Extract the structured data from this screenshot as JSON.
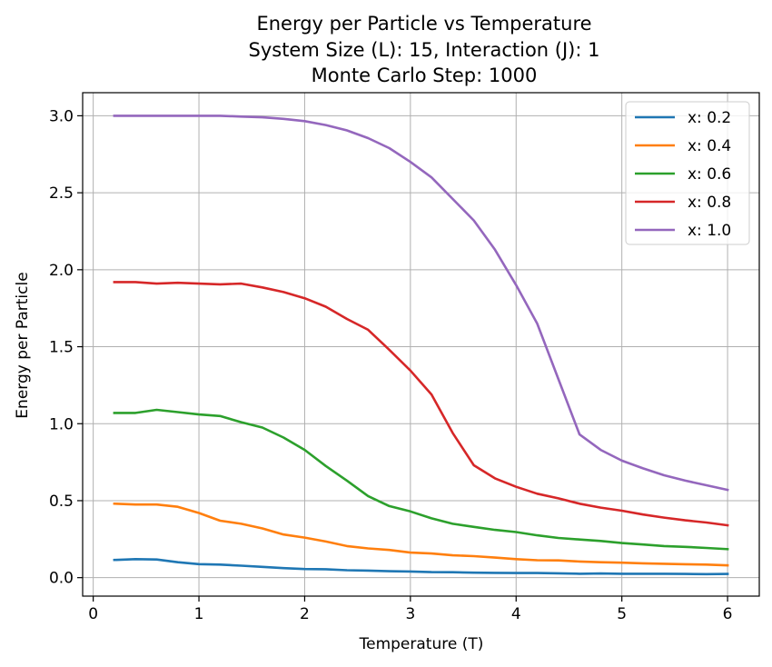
{
  "chart_data": {
    "type": "line",
    "title": [
      "Energy per Particle vs Temperature",
      "System Size (L): 15, Interaction (J): 1",
      "Monte Carlo Step: 1000"
    ],
    "xlabel": "Temperature (T)",
    "ylabel": "Energy per Particle",
    "xlim": [
      -0.1,
      6.3
    ],
    "ylim": [
      -0.12,
      3.15
    ],
    "xticks": [
      0,
      1,
      2,
      3,
      4,
      5,
      6
    ],
    "xtick_labels": [
      "0",
      "1",
      "2",
      "3",
      "4",
      "5",
      "6"
    ],
    "yticks": [
      0.0,
      0.5,
      1.0,
      1.5,
      2.0,
      2.5,
      3.0
    ],
    "ytick_labels": [
      "0.0",
      "0.5",
      "1.0",
      "1.5",
      "2.0",
      "2.5",
      "3.0"
    ],
    "grid": true,
    "legend_position": "top-right",
    "x": [
      0.2,
      0.4,
      0.6,
      0.8,
      1.0,
      1.2,
      1.4,
      1.6,
      1.8,
      2.0,
      2.2,
      2.4,
      2.6,
      2.8,
      3.0,
      3.2,
      3.4,
      3.6,
      3.8,
      4.0,
      4.2,
      4.4,
      4.6,
      4.8,
      5.0,
      5.2,
      5.4,
      5.6,
      5.8,
      6.0
    ],
    "series": [
      {
        "name": "x: 0.2",
        "color": "#1f77b4",
        "values": [
          0.115,
          0.12,
          0.118,
          0.1,
          0.088,
          0.085,
          0.078,
          0.07,
          0.062,
          0.056,
          0.055,
          0.048,
          0.046,
          0.042,
          0.04,
          0.036,
          0.035,
          0.032,
          0.031,
          0.03,
          0.03,
          0.028,
          0.025,
          0.027,
          0.025,
          0.025,
          0.025,
          0.024,
          0.023,
          0.024
        ]
      },
      {
        "name": "x: 0.4",
        "color": "#ff7f0e",
        "values": [
          0.48,
          0.475,
          0.475,
          0.46,
          0.42,
          0.37,
          0.35,
          0.32,
          0.28,
          0.26,
          0.235,
          0.205,
          0.19,
          0.18,
          0.163,
          0.157,
          0.145,
          0.14,
          0.13,
          0.12,
          0.113,
          0.112,
          0.105,
          0.1,
          0.097,
          0.093,
          0.09,
          0.087,
          0.085,
          0.08
        ]
      },
      {
        "name": "x: 0.6",
        "color": "#2ca02c",
        "values": [
          1.07,
          1.07,
          1.09,
          1.075,
          1.06,
          1.05,
          1.01,
          0.975,
          0.91,
          0.83,
          0.725,
          0.63,
          0.53,
          0.465,
          0.43,
          0.385,
          0.35,
          0.33,
          0.31,
          0.296,
          0.275,
          0.258,
          0.248,
          0.238,
          0.225,
          0.215,
          0.205,
          0.2,
          0.193,
          0.185
        ]
      },
      {
        "name": "x: 0.8",
        "color": "#d62728",
        "values": [
          1.92,
          1.92,
          1.91,
          1.915,
          1.91,
          1.905,
          1.91,
          1.885,
          1.855,
          1.815,
          1.76,
          1.68,
          1.61,
          1.48,
          1.345,
          1.19,
          0.94,
          0.73,
          0.645,
          0.59,
          0.545,
          0.515,
          0.48,
          0.455,
          0.435,
          0.41,
          0.39,
          0.372,
          0.358,
          0.34
        ]
      },
      {
        "name": "x: 1.0",
        "color": "#9467bd",
        "values": [
          3.0,
          3.0,
          3.0,
          3.0,
          3.0,
          3.0,
          2.995,
          2.99,
          2.98,
          2.965,
          2.94,
          2.905,
          2.855,
          2.79,
          2.7,
          2.6,
          2.46,
          2.32,
          2.13,
          1.9,
          1.65,
          1.29,
          0.93,
          0.83,
          0.76,
          0.71,
          0.665,
          0.63,
          0.6,
          0.57
        ]
      }
    ]
  }
}
